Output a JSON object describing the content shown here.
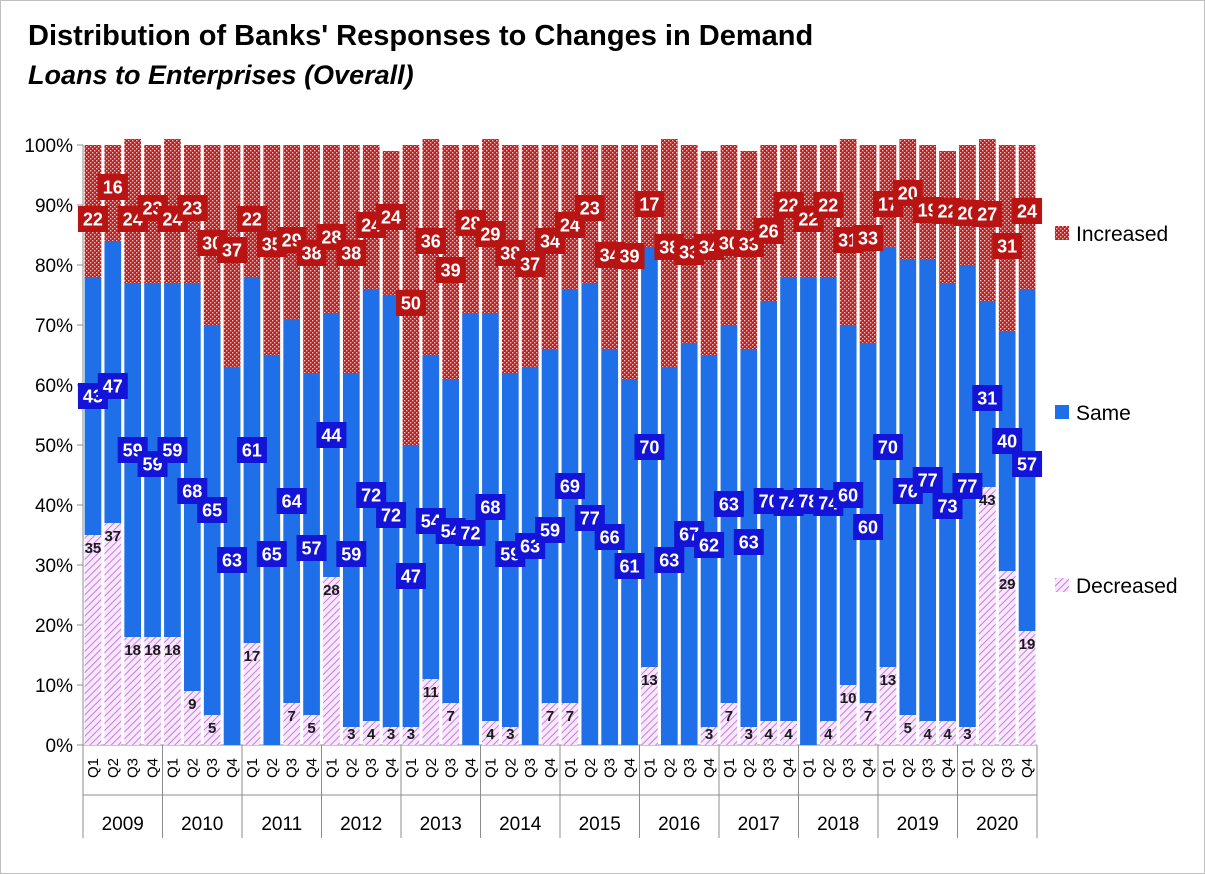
{
  "chart_data": {
    "type": "bar",
    "stacked": true,
    "percent_stacked": true,
    "title": "Distribution of Banks' Responses to Changes in Demand",
    "subtitle": "Loans to Enterprises (Overall)",
    "ylim": [
      0,
      100
    ],
    "y_ticks": [
      "0%",
      "10%",
      "20%",
      "30%",
      "40%",
      "50%",
      "60%",
      "70%",
      "80%",
      "90%",
      "100%"
    ],
    "grid": false,
    "legend_position": "right",
    "years": [
      "2009",
      "2010",
      "2011",
      "2012",
      "2013",
      "2014",
      "2015",
      "2016",
      "2017",
      "2018",
      "2019",
      "2020"
    ],
    "quarters": [
      "Q1",
      "Q2",
      "Q3",
      "Q4"
    ],
    "series": [
      {
        "name": "Decreased",
        "color": "#c97ae6",
        "pattern": "diagonal-hatch",
        "values": [
          35,
          37,
          18,
          18,
          18,
          9,
          5,
          0,
          17,
          0,
          7,
          5,
          28,
          3,
          4,
          3,
          3,
          11,
          7,
          0,
          4,
          3,
          0,
          7,
          7,
          0,
          0,
          0,
          13,
          0,
          0,
          3,
          7,
          3,
          4,
          4,
          0,
          4,
          10,
          7,
          13,
          5,
          4,
          4,
          3,
          43,
          29,
          19
        ]
      },
      {
        "name": "Same",
        "color": "#1f6fe8",
        "pattern": "solid",
        "values": [
          43,
          47,
          59,
          59,
          59,
          68,
          65,
          63,
          61,
          65,
          64,
          57,
          44,
          59,
          72,
          72,
          47,
          54,
          54,
          72,
          68,
          59,
          63,
          59,
          69,
          77,
          66,
          61,
          70,
          63,
          67,
          62,
          63,
          63,
          70,
          74,
          78,
          74,
          60,
          60,
          70,
          76,
          77,
          73,
          77,
          31,
          40,
          57
        ]
      },
      {
        "name": "Increased",
        "color": "#b71c1c",
        "pattern": "dotted",
        "values": [
          22,
          16,
          24,
          23,
          24,
          23,
          30,
          37,
          22,
          35,
          29,
          38,
          28,
          38,
          24,
          24,
          50,
          36,
          39,
          28,
          29,
          38,
          37,
          34,
          24,
          23,
          34,
          39,
          17,
          38,
          33,
          34,
          30,
          33,
          26,
          22,
          22,
          22,
          31,
          33,
          17,
          20,
          19,
          22,
          20,
          27,
          31,
          24
        ]
      }
    ],
    "data_labels": {
      "Decreased": [
        "35",
        "37",
        "18",
        "18",
        "18",
        "9",
        "5",
        "",
        "17",
        "",
        "7",
        "5",
        "28",
        "3",
        "4",
        "3",
        "3",
        "11",
        "7",
        "",
        "4",
        "3",
        "",
        "7",
        "7",
        "",
        "",
        "",
        "13",
        "",
        "",
        "3",
        "7",
        "3",
        "4",
        "4",
        "",
        "4",
        "10",
        "7",
        "13",
        "5",
        "4",
        "4",
        "3",
        "43",
        "29",
        "19"
      ]
    }
  }
}
